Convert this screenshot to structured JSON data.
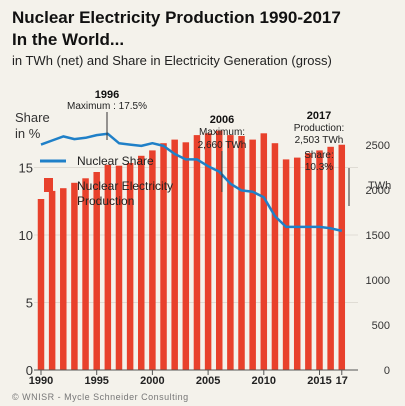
{
  "title_line1": "Nuclear Electricity Production 1990-2017",
  "title_line2": "In the World...",
  "subtitle": "in TWh (net) and Share in Electricity Generation (gross)",
  "y_left_label_line1": "Share",
  "y_left_label_line2": "in %",
  "y_right_label": "TWh",
  "legend": {
    "share": "Nuclear Share",
    "production_line1": "Nuclear Electricity",
    "production_line2": "Production"
  },
  "annotations": {
    "a1996_year": "1996",
    "a1996_text": "Maximum : 17.5%",
    "a2006_year": "2006",
    "a2006_line1": "Maximum:",
    "a2006_line2": "2,660 TWh",
    "a2017_year": "2017",
    "a2017_line1": "Production:",
    "a2017_line2": "2,503 TWh",
    "a2017_line3": "Share:",
    "a2017_line4": "10.3%"
  },
  "footer": "© WNISR - Mycle Schneider Consulting",
  "colors": {
    "bars": "#e8412c",
    "line": "#1f80c8",
    "background": "#f4f2eb",
    "axis": "#9a9a9a"
  },
  "chart_data": {
    "type": "bar+line",
    "x_tick_labels": [
      "1990",
      "1995",
      "2000",
      "2005",
      "2010",
      "2015",
      "17"
    ],
    "left_axis": {
      "label": "Share in %",
      "ticks": [
        "0",
        "5",
        "10",
        "15"
      ],
      "range": [
        0,
        20
      ]
    },
    "right_axis": {
      "label": "TWh",
      "ticks": [
        "0",
        "500",
        "1000",
        "1500",
        "2000",
        "2500"
      ],
      "range": [
        0,
        3000
      ]
    },
    "years": [
      1990,
      1991,
      1992,
      1993,
      1994,
      1995,
      1996,
      1997,
      1998,
      1999,
      2000,
      2001,
      2002,
      2003,
      2004,
      2005,
      2006,
      2007,
      2008,
      2009,
      2010,
      2011,
      2012,
      2013,
      2014,
      2015,
      2016,
      2017
    ],
    "series": [
      {
        "name": "Nuclear Electricity Production",
        "type": "bar",
        "axis": "right",
        "values": [
          1900,
          1990,
          2020,
          2080,
          2130,
          2200,
          2280,
          2270,
          2300,
          2380,
          2440,
          2520,
          2560,
          2530,
          2610,
          2630,
          2660,
          2610,
          2600,
          2560,
          2630,
          2520,
          2340,
          2360,
          2410,
          2440,
          2480,
          2503
        ]
      },
      {
        "name": "Nuclear Share",
        "type": "line",
        "axis": "left",
        "values": [
          16.7,
          17.0,
          17.3,
          17.1,
          17.2,
          17.4,
          17.5,
          16.8,
          16.7,
          16.6,
          16.8,
          16.6,
          16.0,
          15.6,
          15.6,
          15.1,
          14.7,
          13.8,
          13.3,
          13.2,
          12.8,
          11.4,
          10.6,
          10.6,
          10.6,
          10.6,
          10.5,
          10.3
        ]
      }
    ]
  }
}
